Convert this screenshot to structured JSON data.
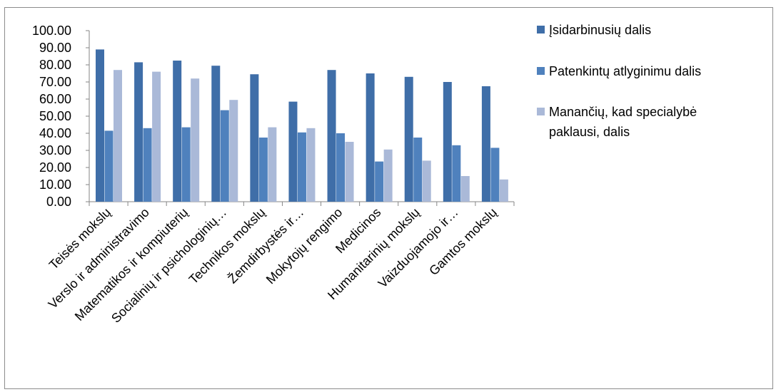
{
  "chart_data": {
    "type": "bar",
    "categories": [
      "Teisės mokslų",
      "Verslo ir administravimo",
      "Matematikos ir kompiuterių",
      "Socialinių ir psichologinių…",
      "Technikos mokslų",
      "Žemdirbystės ir…",
      "Mokytojų rengimo",
      "Medicinos",
      "Humanitarinių mokslų",
      "Vaizduojamojo ir…",
      "Gamtos mokslų"
    ],
    "series": [
      {
        "name": "Įsidarbinusių dalis",
        "color": "#3f6ea8",
        "values": [
          89,
          81.5,
          82.5,
          79.5,
          74.5,
          58.5,
          77,
          75,
          73,
          70,
          67.5
        ]
      },
      {
        "name": "Patenkintų atlyginimu dalis",
        "color": "#4f81bd",
        "values": [
          41.5,
          43,
          43.5,
          53.5,
          37.5,
          40.5,
          40,
          23.5,
          37.5,
          33,
          31.5
        ]
      },
      {
        "name": "Manančių, kad specialybė paklausi, dalis",
        "color": "#aab9d8",
        "values": [
          77,
          76,
          72,
          59.5,
          43.5,
          43,
          35,
          30.5,
          24,
          15,
          13
        ]
      }
    ],
    "yticks": [
      "0.00",
      "10.00",
      "20.00",
      "30.00",
      "40.00",
      "50.00",
      "60.00",
      "70.00",
      "80.00",
      "90.00",
      "100.00"
    ],
    "ylim": [
      0,
      100
    ],
    "grid": false,
    "legend_position": "right",
    "legend_lines": [
      [
        "Įsidarbinusių dalis"
      ],
      [
        "Patenkintų atlyginimu dalis"
      ],
      [
        "Manančių, kad specialybė",
        "paklausi, dalis"
      ]
    ]
  }
}
